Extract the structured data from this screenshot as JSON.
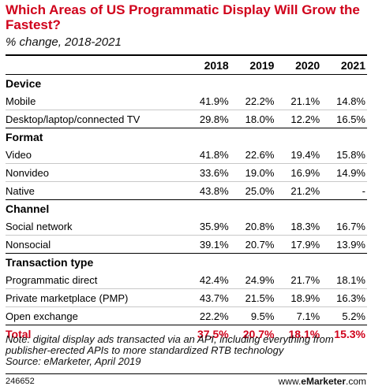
{
  "chart_data": {
    "type": "table",
    "title": "Which Areas of US Programmatic Display Will Grow the Fastest?",
    "subtitle": "% change, 2018-2021",
    "columns": [
      "",
      "2018",
      "2019",
      "2020",
      "2021"
    ],
    "sections": [
      {
        "name": "Device",
        "rows": [
          {
            "label": "Mobile",
            "values": [
              "41.9%",
              "22.2%",
              "21.1%",
              "14.8%"
            ]
          },
          {
            "label": "Desktop/laptop/connected TV",
            "values": [
              "29.8%",
              "18.0%",
              "12.2%",
              "16.5%"
            ]
          }
        ]
      },
      {
        "name": "Format",
        "rows": [
          {
            "label": "Video",
            "values": [
              "41.8%",
              "22.6%",
              "19.4%",
              "15.8%"
            ]
          },
          {
            "label": "Nonvideo",
            "values": [
              "33.6%",
              "19.0%",
              "16.9%",
              "14.9%"
            ]
          },
          {
            "label": "Native",
            "values": [
              "43.8%",
              "25.0%",
              "21.2%",
              "-"
            ]
          }
        ]
      },
      {
        "name": "Channel",
        "rows": [
          {
            "label": "Social network",
            "values": [
              "35.9%",
              "20.8%",
              "18.3%",
              "16.7%"
            ]
          },
          {
            "label": "Nonsocial",
            "values": [
              "39.1%",
              "20.7%",
              "17.9%",
              "13.9%"
            ]
          }
        ]
      },
      {
        "name": "Transaction type",
        "rows": [
          {
            "label": "Programmatic direct",
            "values": [
              "42.4%",
              "24.9%",
              "21.7%",
              "18.1%"
            ]
          },
          {
            "label": "Private marketplace (PMP)",
            "values": [
              "43.7%",
              "21.5%",
              "18.9%",
              "16.3%"
            ]
          },
          {
            "label": "Open exchange",
            "values": [
              "22.2%",
              "9.5%",
              "7.1%",
              "5.2%"
            ]
          }
        ]
      }
    ],
    "total": {
      "label": "Total",
      "values": [
        "37.5%",
        "20.7%",
        "18.1%",
        "15.3%"
      ]
    }
  },
  "note_line1": "Note: digital display ads transacted via an API, including everything from",
  "note_line2": "publisher-erected APIs to more standardized RTB technology",
  "source": "Source: eMarketer, April 2019",
  "chart_id": "246652",
  "brand_prefix": "www.",
  "brand_name": "eMarketer",
  "brand_suffix": ".com",
  "colors": {
    "accent": "#d0021b",
    "text": "#000000",
    "rule": "#c8c8c8"
  }
}
